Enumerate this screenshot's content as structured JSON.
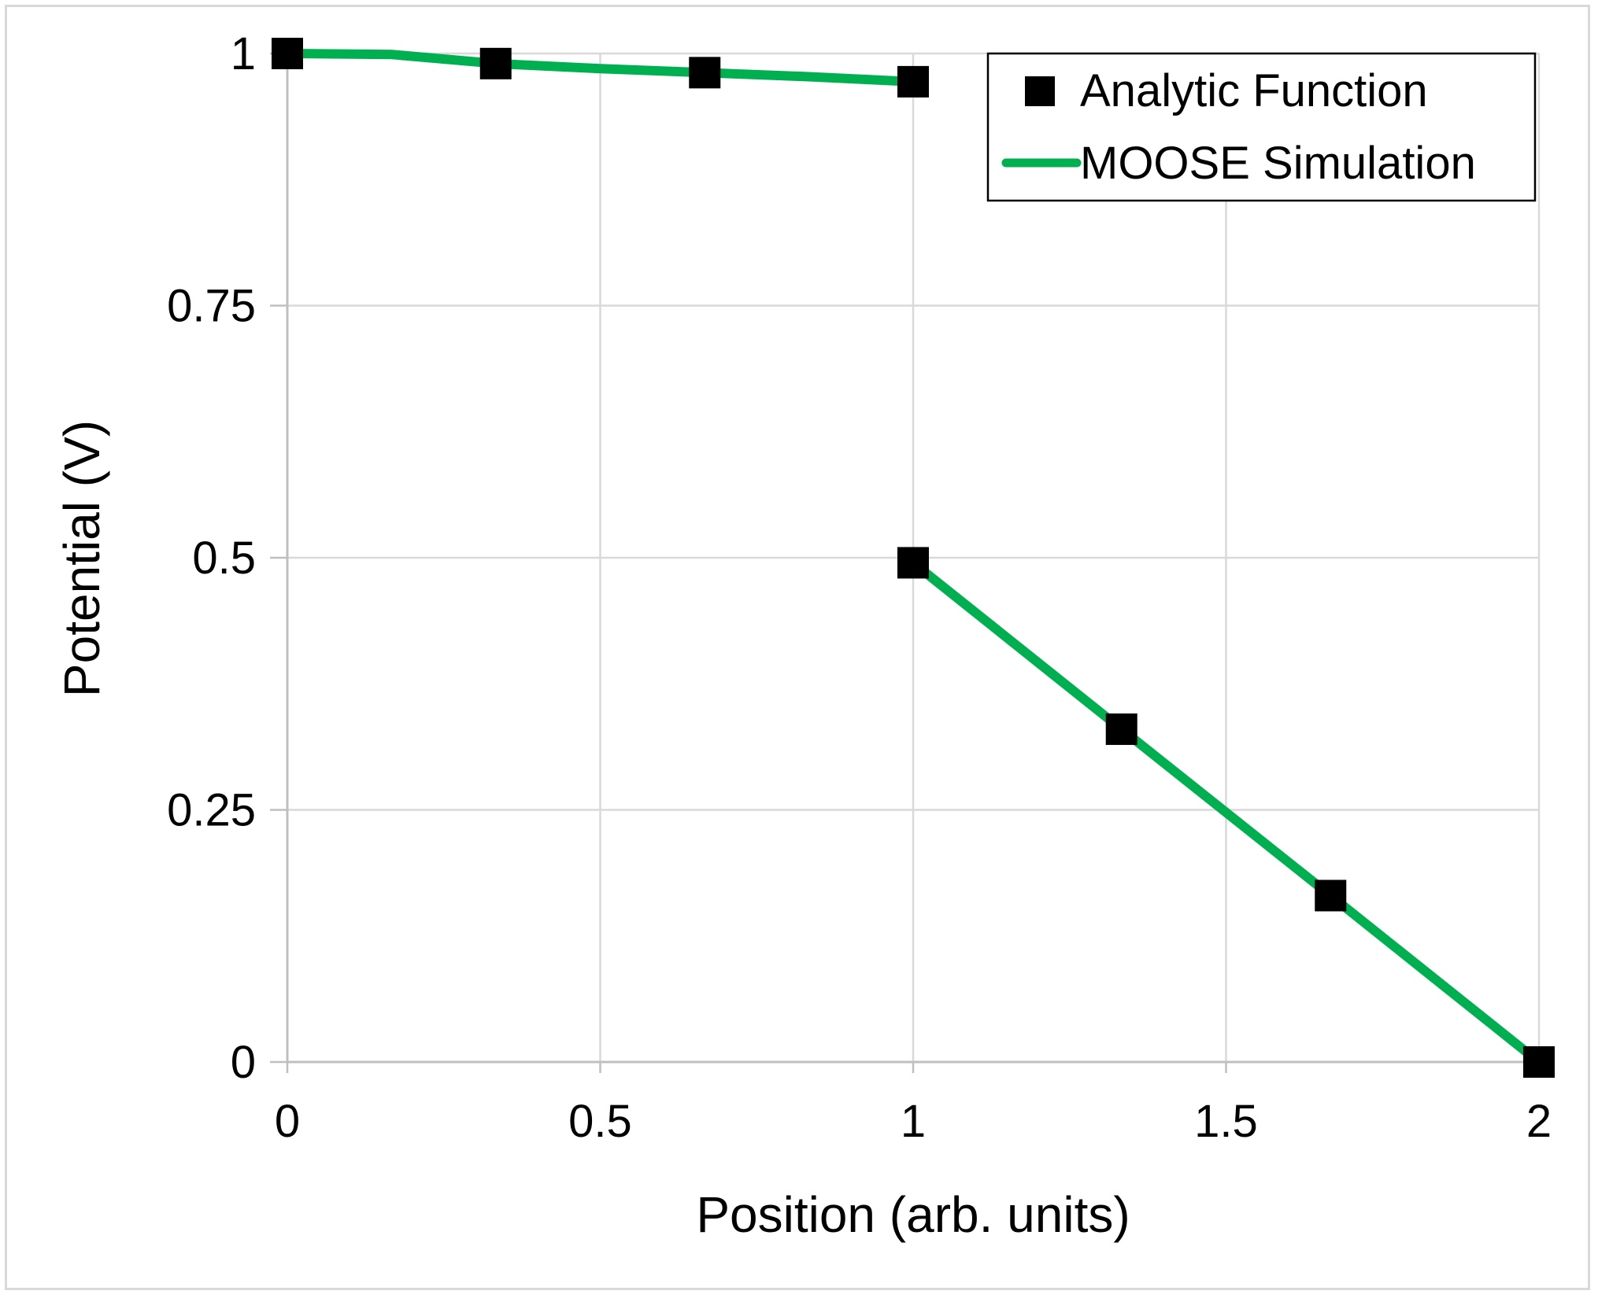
{
  "chart_data": {
    "type": "line",
    "title": "",
    "xlabel": "Position (arb. units)",
    "ylabel": "Potential (V)",
    "xlim": [
      0,
      2
    ],
    "ylim": [
      0,
      1
    ],
    "x_ticks": [
      "0",
      "0.5",
      "1",
      "1.5",
      "2"
    ],
    "y_ticks": [
      "0",
      "0.25",
      "0.5",
      "0.75",
      "1"
    ],
    "grid": true,
    "legend_position": "top-right",
    "series": [
      {
        "name": "Analytic Function",
        "style": "markers",
        "marker": "square",
        "color": "#000000",
        "x": [
          0,
          0.333,
          0.667,
          1.0,
          1.0,
          1.333,
          1.667,
          2.0
        ],
        "y": [
          1.0,
          0.99,
          0.981,
          0.972,
          0.495,
          0.33,
          0.165,
          0.0
        ]
      },
      {
        "name": "MOOSE Simulation",
        "style": "line",
        "color": "#00b050",
        "segments": [
          {
            "x": [
              0,
              0.167,
              0.333,
              0.5,
              0.667,
              0.833,
              1.0
            ],
            "y": [
              1.0,
              0.999,
              0.99,
              0.985,
              0.981,
              0.977,
              0.972
            ]
          },
          {
            "x": [
              1.0,
              1.333,
              1.667,
              2.0
            ],
            "y": [
              0.495,
              0.33,
              0.165,
              0.0
            ]
          }
        ]
      }
    ]
  }
}
